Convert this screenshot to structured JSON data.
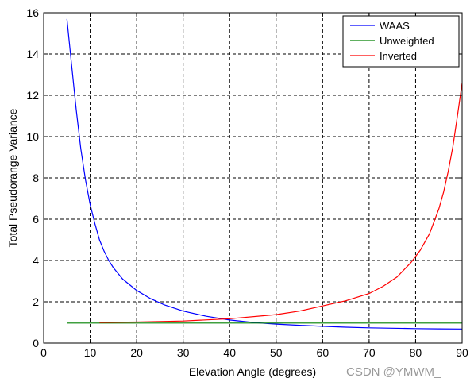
{
  "chart_data": {
    "type": "line",
    "title": "",
    "xlabel": "Elevation Angle (degrees)",
    "ylabel": "Total Pseudorange Variance",
    "xlim": [
      0,
      90
    ],
    "ylim": [
      0,
      16
    ],
    "xticks": [
      0,
      10,
      20,
      30,
      40,
      50,
      60,
      70,
      80,
      90
    ],
    "yticks": [
      0,
      2,
      4,
      6,
      8,
      10,
      12,
      14,
      16
    ],
    "grid": true,
    "legend_position": "top-right",
    "series": [
      {
        "name": "WAAS",
        "color": "#0000ff",
        "x": [
          5,
          6,
          7,
          8,
          9,
          10,
          11,
          12,
          13,
          14,
          15,
          17,
          20,
          23,
          26,
          30,
          35,
          40,
          45,
          50,
          55,
          60,
          65,
          70,
          75,
          80,
          85,
          90
        ],
        "y": [
          15.7,
          13.5,
          11.3,
          9.4,
          7.9,
          6.7,
          5.8,
          5.0,
          4.45,
          4.0,
          3.65,
          3.1,
          2.55,
          2.15,
          1.85,
          1.55,
          1.3,
          1.12,
          1.0,
          0.92,
          0.86,
          0.81,
          0.77,
          0.74,
          0.72,
          0.7,
          0.69,
          0.68
        ]
      },
      {
        "name": "Unweighted",
        "color": "#008000",
        "x": [
          5,
          90
        ],
        "y": [
          0.97,
          0.97
        ]
      },
      {
        "name": "Inverted",
        "color": "#ff0000",
        "x": [
          12,
          20,
          30,
          40,
          50,
          55,
          60,
          65,
          70,
          73,
          76,
          79,
          81,
          83,
          85,
          86,
          87,
          88,
          89,
          90
        ],
        "y": [
          1.0,
          1.02,
          1.07,
          1.18,
          1.38,
          1.55,
          1.8,
          2.05,
          2.4,
          2.75,
          3.2,
          3.9,
          4.5,
          5.3,
          6.5,
          7.3,
          8.3,
          9.5,
          11.0,
          12.6
        ]
      }
    ]
  },
  "watermark": "CSDN @YMWM_"
}
